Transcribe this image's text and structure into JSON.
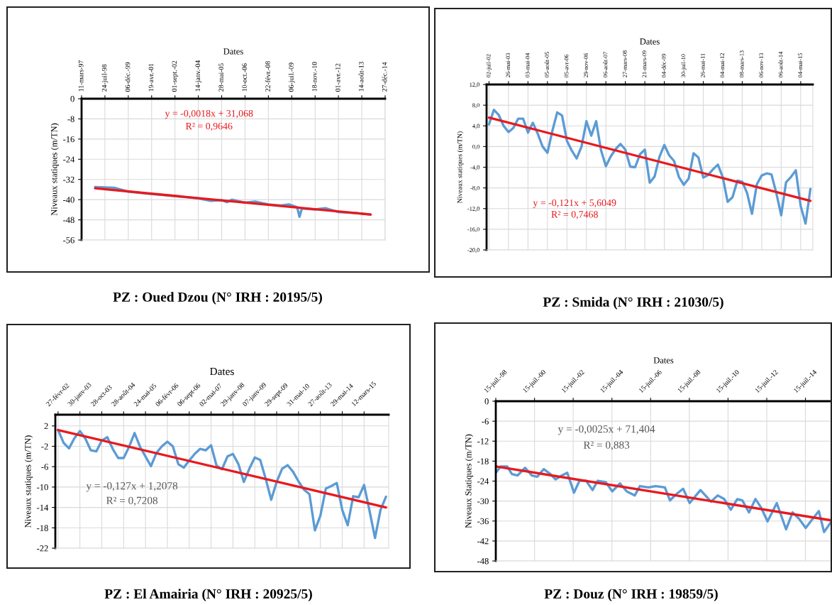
{
  "chart_data": [
    {
      "type": "line",
      "title": "PZ : Oued Dzou (N° IRH : 20195/5)",
      "xlabel": "Dates",
      "ylabel": "Niveaux statiques (m/TN)",
      "xlim": [
        "1997-03-11",
        "2014-12-27"
      ],
      "xticks": [
        {
          "value": "1997-03-11",
          "label": "11-mars-97"
        },
        {
          "value": "1998-07-24",
          "label": "24-juil-98"
        },
        {
          "value": "1999-12-06",
          "label": "06-déc.-99"
        },
        {
          "value": "2001-04-19",
          "label": "19-avr.-01"
        },
        {
          "value": "2002-09-01",
          "label": "01-sept.-02"
        },
        {
          "value": "2004-01-14",
          "label": "14-janv.-04"
        },
        {
          "value": "2005-05-28",
          "label": "28-mai-05"
        },
        {
          "value": "2006-10-10",
          "label": "10-oct.-06"
        },
        {
          "value": "2008-02-22",
          "label": "22-févr.-08"
        },
        {
          "value": "2009-07-06",
          "label": "06-juil.-09"
        },
        {
          "value": "2010-11-18",
          "label": "18-nov.-10"
        },
        {
          "value": "2012-04-01",
          "label": "01-avr.-12"
        },
        {
          "value": "2013-08-14",
          "label": "14-août-13"
        },
        {
          "value": "2014-12-27",
          "label": "27-déc.-14"
        }
      ],
      "ylim": [
        -56,
        0
      ],
      "yticks": [
        0,
        -8,
        -16,
        -24,
        -32,
        -40,
        -48,
        -56
      ],
      "grid": true,
      "line_style": "solid",
      "marker": "none",
      "series": [
        {
          "color": "#5b9bd5",
          "x": [
            "1997-12-26",
            "1999-02-08",
            "1999-12-06",
            "2001-01-08",
            "2002-09-01",
            "2004-01-14",
            "2004-10-06",
            "2005-05-28",
            "2005-09-21",
            "2005-12-30",
            "2006-10-10",
            "2007-05-14",
            "2008-02-22",
            "2008-11-14",
            "2009-05-08",
            "2009-10-30",
            "2009-12-19",
            "2010-02-07",
            "2010-11-10",
            "2011-06-24",
            "2012-04-01",
            "2013-04-05",
            "2014-02-19"
          ],
          "values": [
            -35.0,
            -35.3,
            -36.8,
            -37.6,
            -38.6,
            -39.5,
            -40.5,
            -40.2,
            -41,
            -40,
            -41.2,
            -40.8,
            -41.9,
            -42.3,
            -41.9,
            -43,
            -46.8,
            -43.5,
            -43.9,
            -43.4,
            -44.9,
            -45.3,
            -45.9
          ]
        },
        {
          "color": "#e8191e",
          "x": [
            "1997-12-26",
            "2014-02-19"
          ],
          "values": [
            -35.5,
            -45.9
          ]
        }
      ],
      "annotations": [
        "y = -0,0018x + 31,068",
        "R² = 0,9646"
      ]
    },
    {
      "type": "line",
      "title": "PZ : Smida (N° IRH : 21030/5)",
      "xlabel": "Dates",
      "ylabel": "Niveaux statiques (m/TN)",
      "categories": [
        "02-juil-02",
        null,
        null,
        null,
        "26-mai-03",
        null,
        null,
        null,
        "03-mai-04",
        null,
        null,
        null,
        "05-août-05",
        null,
        null,
        null,
        "05-avr-06",
        null,
        null,
        null,
        "29-nov-06",
        null,
        null,
        null,
        "06-août-07",
        null,
        null,
        null,
        "27-mars-08",
        null,
        null,
        null,
        "21-mars-09",
        null,
        null,
        null,
        "04-déc-09",
        null,
        null,
        null,
        "30-juil-10",
        null,
        null,
        null,
        "26-mai-11",
        null,
        null,
        null,
        "04-mai-12",
        null,
        null,
        null,
        "08-mars-13",
        null,
        null,
        null,
        "06-nov-13",
        null,
        null,
        null,
        "06-août-14",
        null,
        null,
        null,
        "04-mai-15",
        null,
        null
      ],
      "ylim": [
        -20,
        12
      ],
      "yticks": [
        {
          "value": 12,
          "label": "12,0"
        },
        {
          "value": 8,
          "label": "8,0"
        },
        {
          "value": 4,
          "label": "4,0"
        },
        {
          "value": 0,
          "label": "0,0"
        },
        {
          "value": -4,
          "label": "-4,0"
        },
        {
          "value": -8,
          "label": "-8,0"
        },
        {
          "value": -12,
          "label": "-12,0"
        },
        {
          "value": -16,
          "label": "-16,0"
        },
        {
          "value": -20,
          "label": "-20,0"
        }
      ],
      "grid": true,
      "line_style": "solid",
      "marker": "none",
      "series": [
        {
          "color": "#5b9bd5",
          "values": [
            4.3,
            7.1,
            6.1,
            4.0,
            2.8,
            3.6,
            5.4,
            5.4,
            2.7,
            4.6,
            2.5,
            0.0,
            -1.2,
            3.0,
            6.6,
            6.0,
            1.1,
            -0.8,
            -2.3,
            0.0,
            4.9,
            2.1,
            4.9,
            -0.7,
            -3.8,
            -1.9,
            -0.5,
            0.5,
            -0.6,
            -3.9,
            -4.0,
            -1.5,
            -0.6,
            -7.0,
            -5.8,
            -2.0,
            0.3,
            -1.7,
            -2.8,
            -5.9,
            -7.4,
            -6.2,
            -1.3,
            -2.1,
            -6.0,
            -5.5,
            -4.4,
            -3.5,
            -5.9,
            -10.7,
            -9.8,
            -6.6,
            -6.8,
            -9.0,
            -13.0,
            -7.3,
            -5.6,
            -5.2,
            -5.4,
            -9.0,
            -13.3,
            -6.9,
            -5.9,
            -4.6,
            -11.5,
            -14.9,
            -8.2
          ]
        },
        {
          "color": "#e8191e",
          "values": [
            5.6,
            null,
            null,
            null,
            null,
            null,
            null,
            null,
            null,
            null,
            null,
            null,
            null,
            null,
            null,
            null,
            null,
            null,
            null,
            null,
            null,
            null,
            null,
            null,
            null,
            null,
            null,
            null,
            null,
            null,
            null,
            null,
            null,
            null,
            null,
            null,
            null,
            null,
            null,
            null,
            null,
            null,
            null,
            null,
            null,
            null,
            null,
            null,
            null,
            null,
            null,
            null,
            null,
            null,
            null,
            null,
            null,
            null,
            null,
            null,
            null,
            null,
            null,
            null,
            null,
            null,
            -10.5
          ]
        }
      ],
      "annotations": [
        "y = -0,121x + 5,6049",
        "R² = 0,7468"
      ]
    },
    {
      "type": "line",
      "title": "PZ : El Amairia (N° IRH : 20925/5)",
      "xlabel": "Dates",
      "ylabel": "Niveaux statiques (m/TN)",
      "categories": [
        "27-févr-02",
        null,
        null,
        null,
        "30-janv-03",
        null,
        null,
        null,
        "28-oct-03",
        null,
        null,
        null,
        "28-août-04",
        null,
        null,
        null,
        "24-mai-05",
        null,
        null,
        null,
        "06-févr-06",
        null,
        null,
        null,
        "06-sept-06",
        null,
        null,
        null,
        "02-mai-07",
        null,
        null,
        null,
        "29-janv-08",
        null,
        null,
        null,
        "07-janv-09",
        null,
        null,
        null,
        "29-sept-09",
        null,
        null,
        null,
        "31-mai-10",
        null,
        null,
        null,
        "27-août-13",
        null,
        null,
        null,
        "29-mai-14",
        null,
        null,
        null,
        "12-mars-15",
        null,
        null,
        null,
        null
      ],
      "ylim": [
        -22,
        4.2
      ],
      "yticks": [
        2,
        -2,
        -6,
        -10,
        -14,
        -18,
        -22
      ],
      "grid": true,
      "line_style": "solid",
      "marker": "none",
      "series": [
        {
          "color": "#5b9bd5",
          "values": [
            1.2,
            -1.3,
            -2.4,
            -0.4,
            1.0,
            -0.5,
            -2.8,
            -3.0,
            -0.9,
            -0.2,
            -2.5,
            -4.3,
            -4.3,
            -2.1,
            0.6,
            -2.1,
            -4.0,
            -5.9,
            -3.3,
            -2.0,
            -1.1,
            -2.0,
            -5.5,
            -6.2,
            -4.8,
            -3.5,
            -2.5,
            -2.8,
            -1.8,
            -5.8,
            -6.5,
            -4.0,
            -3.5,
            -5.5,
            -9.0,
            -6.4,
            -4.2,
            -4.7,
            -8.4,
            -12.5,
            -9.0,
            -6.4,
            -5.7,
            -7.0,
            -8.9,
            -10.5,
            -11.4,
            -18.5,
            -15.6,
            -10.3,
            -9.8,
            -9.2,
            -14.5,
            -17.5,
            -11.8,
            -12.0,
            -9.6,
            -14.7,
            -20.0,
            -14.5,
            -11.9
          ]
        },
        {
          "color": "#e8191e",
          "values": [
            1.2,
            null,
            null,
            null,
            null,
            null,
            null,
            null,
            null,
            null,
            null,
            null,
            null,
            null,
            null,
            null,
            null,
            null,
            null,
            null,
            null,
            null,
            null,
            null,
            null,
            null,
            null,
            null,
            null,
            null,
            null,
            null,
            null,
            null,
            null,
            null,
            null,
            null,
            null,
            null,
            null,
            null,
            null,
            null,
            null,
            null,
            null,
            null,
            null,
            null,
            null,
            null,
            null,
            null,
            null,
            null,
            null,
            null,
            null,
            null,
            -14.0
          ]
        }
      ],
      "annotations": [
        "y = -0,127x + 1,2078",
        "R² = 0,7208"
      ]
    },
    {
      "type": "line",
      "title": "PZ : Douz (N° IRH : 19859/5)",
      "xlabel": "Dates",
      "ylabel": "Niveaux Statiques (m/TN)",
      "xlim": [
        "1998-07-15",
        "2015-11-15"
      ],
      "xticks": [
        {
          "value": "1998-07-15",
          "label": "15-juil.-98"
        },
        {
          "value": "2000-07-15",
          "label": "15-juil.-00"
        },
        {
          "value": "2002-07-15",
          "label": "15-juil.-02"
        },
        {
          "value": "2004-07-15",
          "label": "15-juil.-04"
        },
        {
          "value": "2006-07-15",
          "label": "15-juil.-06"
        },
        {
          "value": "2008-07-15",
          "label": "15-juil.-08"
        },
        {
          "value": "2010-07-15",
          "label": "15-juil.-10"
        },
        {
          "value": "2012-07-15",
          "label": "15-juil.-12"
        },
        {
          "value": "2014-07-15",
          "label": "15-juil.-14"
        }
      ],
      "ylim": [
        -48,
        0
      ],
      "yticks": [
        0,
        -6,
        -12,
        -18,
        -24,
        -30,
        -36,
        -42,
        -48
      ],
      "grid": true,
      "line_style": "solid",
      "marker": "none",
      "series": [
        {
          "color": "#5b9bd5",
          "x": [
            "1998-07-15",
            "1998-10-15",
            "1999-02-15",
            "1999-05-15",
            "1999-08-30",
            "2000-01-20",
            "2000-05-25",
            "2000-09-05",
            "2001-01-05",
            "2001-05-10",
            "2001-08-15",
            "2001-12-15",
            "2002-03-25",
            "2002-07-30",
            "2002-11-10",
            "2003-03-15",
            "2003-07-15",
            "2003-10-20",
            "2004-03-20",
            "2004-07-20",
            "2004-12-15",
            "2005-04-20",
            "2005-09-20",
            "2005-12-25",
            "2006-06-01",
            "2006-10-20",
            "2007-04-10",
            "2007-07-15",
            "2007-11-15",
            "2008-03-20",
            "2008-07-20",
            "2009-02-10",
            "2009-08-30",
            "2010-01-01",
            "2010-05-05",
            "2010-09-05",
            "2011-01-05",
            "2011-04-10",
            "2011-08-15",
            "2011-12-15",
            "2012-03-25",
            "2012-07-30",
            "2013-01-20",
            "2013-07-15",
            "2013-11-15",
            "2014-03-20",
            "2014-07-20",
            "2014-11-25",
            "2015-03-25",
            "2015-07-01",
            "2015-11-01"
          ],
          "values": [
            -21.5,
            -19.6,
            -19.6,
            -21.9,
            -22.3,
            -20.0,
            -22.3,
            -22.7,
            -20.4,
            -21.9,
            -23.5,
            -22.3,
            -21.5,
            -27.5,
            -23.9,
            -23.9,
            -26.7,
            -23.9,
            -24.3,
            -27.1,
            -24.7,
            -27.1,
            -28.3,
            -25.5,
            -25.9,
            -25.5,
            -25.9,
            -29.8,
            -27.9,
            -26.3,
            -30.6,
            -26.7,
            -30.2,
            -28.3,
            -29.4,
            -32.6,
            -29.4,
            -29.8,
            -33.4,
            -29.4,
            -31.8,
            -36.1,
            -30.6,
            -38.5,
            -33.4,
            -35.4,
            -38.1,
            -35.4,
            -33.0,
            -39.3,
            -36.5
          ]
        },
        {
          "color": "#e8191e",
          "x": [
            "1998-07-15",
            "2015-11-15"
          ],
          "values": [
            -19.6,
            -35.8
          ]
        }
      ],
      "annotations": [
        "y = -0,0025x + 71,404",
        "R² = 0,883"
      ]
    }
  ]
}
